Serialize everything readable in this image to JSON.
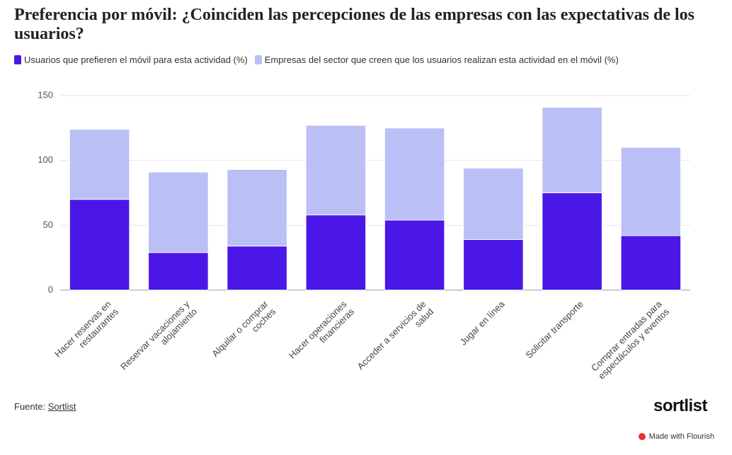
{
  "chart_data": {
    "type": "stacked-bar",
    "title": "Preferencia por móvil: ¿Coinciden las percepciones de las empresas con las expectativas de los usuarios?",
    "categories": [
      "Hacer reservas en restaurantes",
      "Reservar vacaciones y alojamiento",
      "Alquilar o comprar coches",
      "Hacer operaciones financieras",
      "Acceder a servicios de salud",
      "Jugar en línea",
      "Solicitar transporte",
      "Comprar entradas para espectáculos y eventos"
    ],
    "series": [
      {
        "name": "Usuarios que prefieren el móvil para esta actividad (%)",
        "color": "#4a17e8",
        "values": [
          70,
          29,
          34,
          58,
          54,
          39,
          75,
          42
        ]
      },
      {
        "name": "Empresas del sector que creen que los usuarios realizan esta actividad en el móvil (%)",
        "color": "#babff5",
        "values": [
          54,
          62,
          59,
          69,
          71,
          55,
          66,
          68
        ]
      }
    ],
    "ylim": [
      0,
      150
    ],
    "yticks": [
      0,
      50,
      100,
      150
    ],
    "grid": true,
    "source_prefix": "Fuente:",
    "source": "Sortlist",
    "logo": "sortlist",
    "credit": "Made with Flourish"
  }
}
